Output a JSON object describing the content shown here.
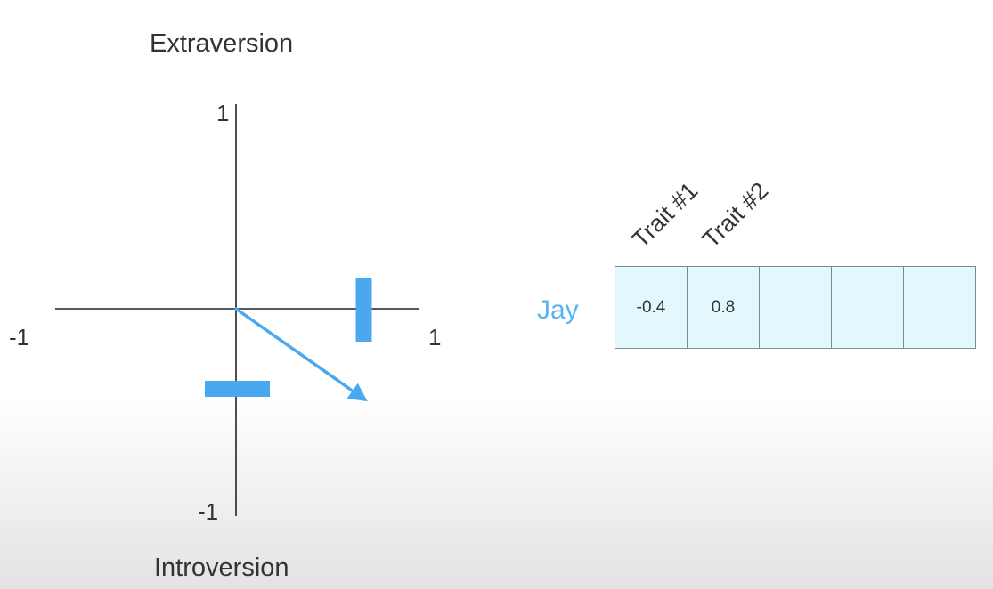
{
  "axes": {
    "y_top_label": "Extraversion",
    "y_bottom_label": "Introversion",
    "x_min_label": "-1",
    "x_max_label": "1",
    "y_max_label": "1",
    "y_min_label": "-1",
    "x_range": [
      -1,
      1
    ],
    "y_range": [
      -1,
      1
    ]
  },
  "colors": {
    "accent": "#4aa8f0",
    "axis": "#222222",
    "table_fill": "#e2f8fd",
    "table_border": "#7f8a90",
    "row_label": "#5ab4f0"
  },
  "markers": {
    "x_marker": 0.7,
    "y_marker": -0.4
  },
  "vector": {
    "x": 0.7,
    "y": -0.45
  },
  "table": {
    "row_label": "Jay",
    "headers": [
      "Trait #1",
      "Trait #2"
    ],
    "cells": [
      "-0.4",
      "0.8",
      "",
      "",
      ""
    ]
  }
}
